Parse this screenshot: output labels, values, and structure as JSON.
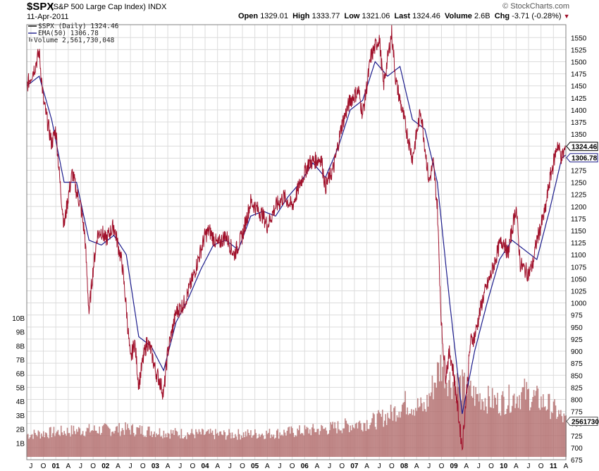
{
  "header": {
    "symbol": "$SPX",
    "name": "(S&P 500 Large Cap Index)",
    "exchange": "INDX",
    "brand": "© StockCharts.com",
    "date": "11-Apr-2011",
    "open_label": "Open",
    "open": "1329.01",
    "high_label": "High",
    "high": "1333.77",
    "low_label": "Low",
    "low": "1321.06",
    "last_label": "Last",
    "last": "1324.46",
    "volume_label": "Volume",
    "volume": "2.6B",
    "chg_label": "Chg",
    "chg": "-3.71 (-0.28%)"
  },
  "colors": {
    "price": "#a0102a",
    "ema": "#1c1c8c",
    "volume": "#b06a6a",
    "grid": "#dcdcdc",
    "frame": "#808080"
  },
  "chart_data": {
    "type": "line",
    "legend": {
      "price": "$SPX (Daily) 1324.46",
      "ema": "EMA(50) 1306.78",
      "volume": "Volume 2,561,730,048"
    },
    "badges": {
      "last": "1324.46",
      "ema": "1306.78",
      "volume": "2561730"
    },
    "price_axis": {
      "ylim": [
        675,
        1565
      ],
      "ticks": [
        "675",
        "700",
        "725",
        "750",
        "775",
        "800",
        "825",
        "850",
        "875",
        "900",
        "925",
        "950",
        "975",
        "1000",
        "1025",
        "1050",
        "1075",
        "1100",
        "1125",
        "1150",
        "1175",
        "1200",
        "1225",
        "1250",
        "1275",
        "1300",
        "1325",
        "1350",
        "1375",
        "1400",
        "1425",
        "1450",
        "1475",
        "1500",
        "1525",
        "1550"
      ]
    },
    "volume_axis": {
      "ticks": [
        "1B",
        "2B",
        "3B",
        "4B",
        "5B",
        "6B",
        "7B",
        "8B",
        "9B",
        "10B"
      ],
      "ylim_billions": [
        0,
        10.5
      ]
    },
    "x_labels": [
      "J",
      "O",
      "01",
      "A",
      "J",
      "O",
      "02",
      "A",
      "J",
      "O",
      "03",
      "A",
      "J",
      "O",
      "04",
      "A",
      "J",
      "O",
      "05",
      "A",
      "J",
      "O",
      "06",
      "A",
      "J",
      "O",
      "07",
      "A",
      "J",
      "O",
      "08",
      "A",
      "J",
      "O",
      "09",
      "A",
      "J",
      "O",
      "10",
      "A",
      "J",
      "O",
      "11",
      "A"
    ],
    "x_range": [
      "2000-06",
      "2011-04"
    ],
    "series": [
      {
        "name": "$SPX (Daily)",
        "x": [
          "2000-06",
          "2000-08",
          "2000-09",
          "2000-10",
          "2000-12",
          "2001-01",
          "2001-02",
          "2001-03",
          "2001-04",
          "2001-05",
          "2001-06",
          "2001-07",
          "2001-08",
          "2001-09",
          "2001-10",
          "2001-11",
          "2001-12",
          "2002-01",
          "2002-03",
          "2002-04",
          "2002-05",
          "2002-06",
          "2002-07",
          "2002-08",
          "2002-09",
          "2002-10",
          "2002-11",
          "2002-12",
          "2003-01",
          "2003-02",
          "2003-03",
          "2003-04",
          "2003-06",
          "2003-08",
          "2003-10",
          "2003-12",
          "2004-01",
          "2004-02",
          "2004-04",
          "2004-06",
          "2004-08",
          "2004-10",
          "2004-12",
          "2005-03",
          "2005-04",
          "2005-06",
          "2005-08",
          "2005-10",
          "2005-12",
          "2006-02",
          "2006-05",
          "2006-06",
          "2006-08",
          "2006-10",
          "2006-12",
          "2007-02",
          "2007-03",
          "2007-05",
          "2007-07",
          "2007-08",
          "2007-10",
          "2007-11",
          "2008-01",
          "2008-03",
          "2008-05",
          "2008-07",
          "2008-08",
          "2008-09",
          "2008-10",
          "2008-11",
          "2008-12",
          "2009-01",
          "2009-03",
          "2009-05",
          "2009-06",
          "2009-08",
          "2009-10",
          "2009-12",
          "2010-01",
          "2010-02",
          "2010-04",
          "2010-05",
          "2010-07",
          "2010-08",
          "2010-09",
          "2010-11",
          "2010-12",
          "2011-02",
          "2011-03",
          "2011-04"
        ],
        "values": [
          1450,
          1490,
          1520,
          1420,
          1330,
          1360,
          1250,
          1160,
          1220,
          1270,
          1230,
          1200,
          1140,
          980,
          1070,
          1140,
          1150,
          1130,
          1160,
          1120,
          1080,
          990,
          880,
          920,
          830,
          880,
          920,
          900,
          860,
          840,
          810,
          900,
          980,
          1000,
          1050,
          1110,
          1140,
          1150,
          1120,
          1140,
          1100,
          1140,
          1210,
          1180,
          1160,
          1200,
          1220,
          1200,
          1250,
          1290,
          1300,
          1240,
          1280,
          1370,
          1420,
          1440,
          1390,
          1510,
          1550,
          1450,
          1560,
          1460,
          1380,
          1300,
          1400,
          1250,
          1290,
          1200,
          950,
          850,
          900,
          850,
          700,
          920,
          930,
          1010,
          1060,
          1120,
          1130,
          1100,
          1200,
          1080,
          1060,
          1080,
          1130,
          1190,
          1250,
          1330,
          1300,
          1324
        ]
      },
      {
        "name": "EMA(50)",
        "x": [
          "2000-06",
          "2000-09",
          "2000-12",
          "2001-03",
          "2001-06",
          "2001-09",
          "2001-12",
          "2002-03",
          "2002-06",
          "2002-09",
          "2002-12",
          "2003-03",
          "2003-06",
          "2003-09",
          "2003-12",
          "2004-03",
          "2004-06",
          "2004-09",
          "2004-12",
          "2005-03",
          "2005-06",
          "2005-09",
          "2005-12",
          "2006-03",
          "2006-06",
          "2006-09",
          "2006-12",
          "2007-03",
          "2007-06",
          "2007-09",
          "2007-12",
          "2008-03",
          "2008-06",
          "2008-09",
          "2008-12",
          "2009-03",
          "2009-06",
          "2009-09",
          "2009-12",
          "2010-03",
          "2010-06",
          "2010-09",
          "2010-12",
          "2011-03",
          "2011-04"
        ],
        "values": [
          1450,
          1470,
          1380,
          1250,
          1250,
          1130,
          1120,
          1140,
          1100,
          930,
          910,
          860,
          960,
          1010,
          1070,
          1120,
          1130,
          1110,
          1180,
          1190,
          1180,
          1220,
          1250,
          1290,
          1260,
          1320,
          1400,
          1420,
          1500,
          1470,
          1490,
          1380,
          1360,
          1250,
          1000,
          770,
          900,
          1000,
          1090,
          1130,
          1110,
          1090,
          1190,
          1300,
          1306.78
        ]
      },
      {
        "name": "Volume",
        "unit": "billions",
        "x": [
          "2000-06",
          "2001-06",
          "2002-06",
          "2003-06",
          "2004-06",
          "2005-06",
          "2006-06",
          "2007-06",
          "2007-10",
          "2008-01",
          "2008-06",
          "2008-10",
          "2008-12",
          "2009-03",
          "2009-06",
          "2009-12",
          "2010-06",
          "2010-12",
          "2011-04"
        ],
        "values": [
          1.6,
          1.9,
          2.0,
          1.7,
          1.6,
          1.7,
          2.0,
          2.6,
          3.1,
          3.9,
          3.5,
          6.8,
          5.5,
          5.1,
          4.4,
          3.9,
          4.6,
          3.7,
          2.56
        ]
      }
    ]
  }
}
